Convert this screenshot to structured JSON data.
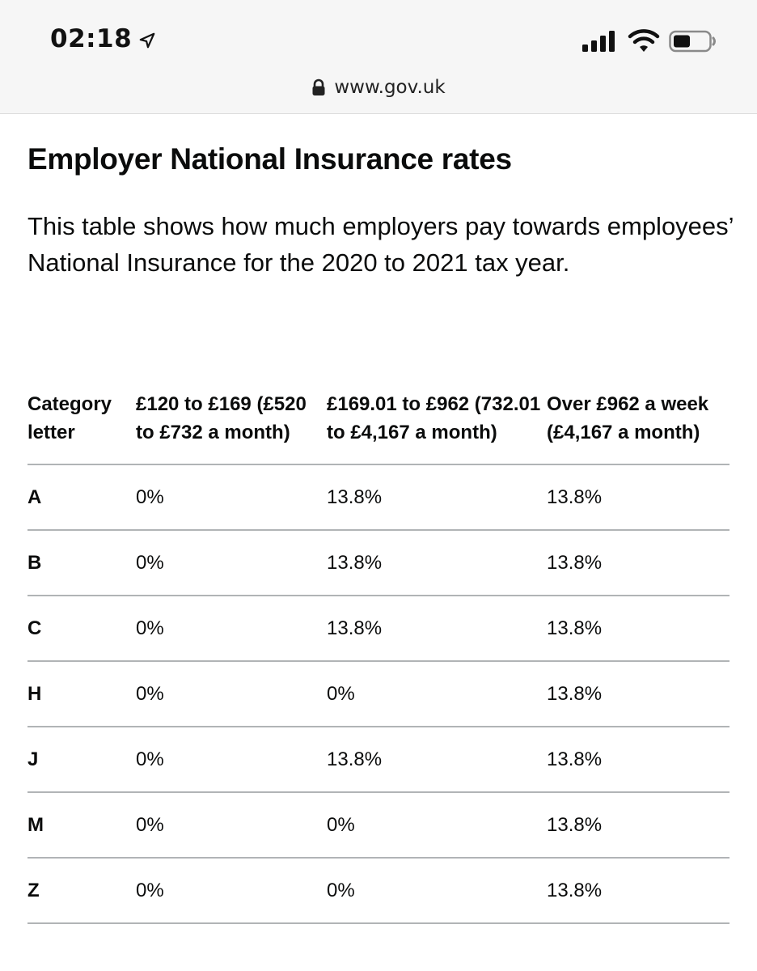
{
  "status_bar": {
    "time": "02:18",
    "icons": [
      "location-arrow-icon",
      "cellular-signal-icon",
      "wifi-icon",
      "battery-icon"
    ]
  },
  "browser": {
    "url": "www.gov.uk",
    "lock_icon": "lock-icon"
  },
  "page": {
    "title": "Employer National Insurance rates",
    "intro": "This table shows how much employers pay towards employees’ National Insurance for the 2020 to 2021 tax year."
  },
  "table": {
    "headers": [
      "Category letter",
      "£120 to £169 (£520 to £732 a month)",
      "£169.01 to £962 (732.01 to £4,167 a month)",
      "Over £962 a week (£4,167 a month)"
    ],
    "rows": [
      [
        "A",
        "0%",
        "13.8%",
        "13.8%"
      ],
      [
        "B",
        "0%",
        "13.8%",
        "13.8%"
      ],
      [
        "C",
        "0%",
        "13.8%",
        "13.8%"
      ],
      [
        "H",
        "0%",
        "0%",
        "13.8%"
      ],
      [
        "J",
        "0%",
        "13.8%",
        "13.8%"
      ],
      [
        "M",
        "0%",
        "0%",
        "13.8%"
      ],
      [
        "Z",
        "0%",
        "0%",
        "13.8%"
      ]
    ]
  },
  "colors": {
    "text": "#0b0c0c",
    "rule": "#b1b4b6",
    "browser_bar": "#f6f6f6"
  }
}
